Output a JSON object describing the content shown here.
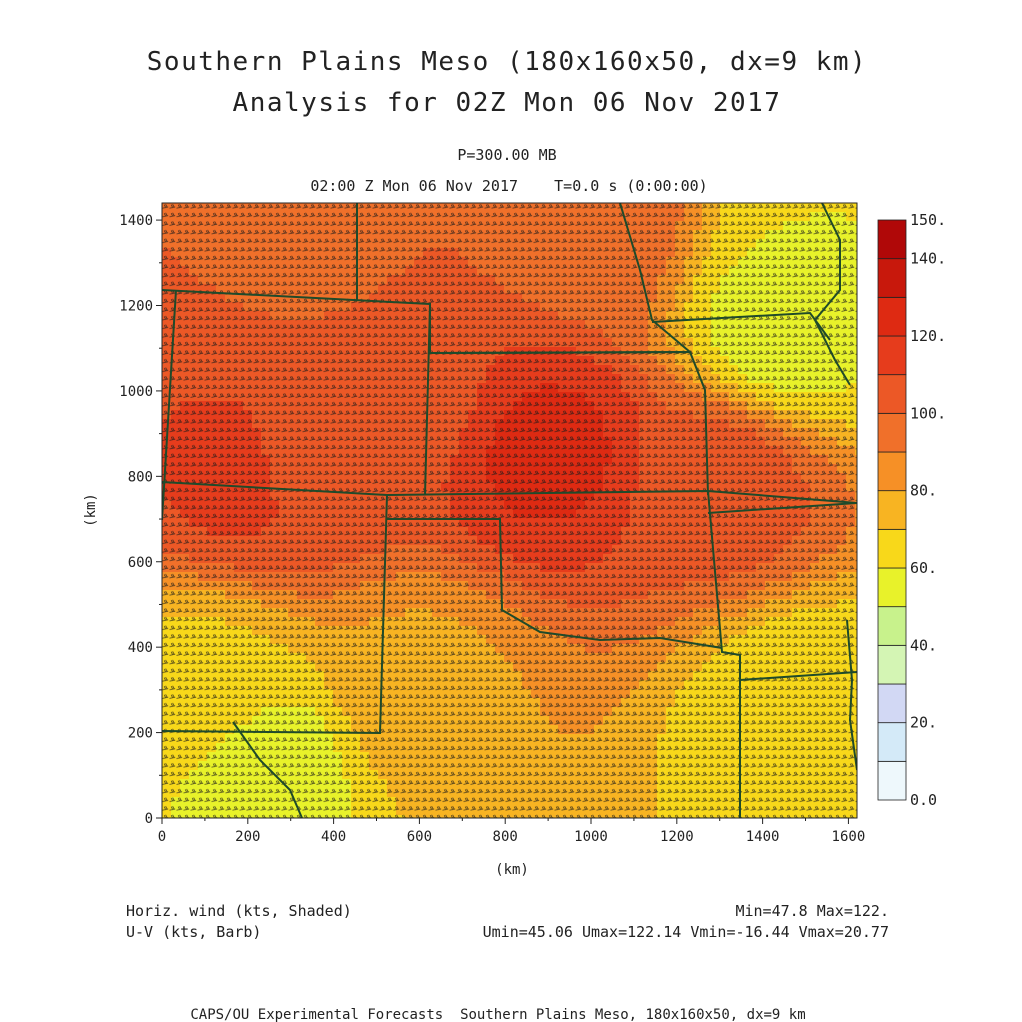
{
  "title_line1": "Southern Plains Meso (180x160x50, dx=9 km)",
  "title_line2": "Analysis for 02Z Mon 06 Nov 2017",
  "level_label": "P=300.00 MB",
  "time_label": "02:00 Z Mon 06 Nov 2017    T=0.0 s (0:00:00)",
  "stats_left_line1": "Horiz. wind (kts, Shaded)",
  "stats_left_line2": "U-V (kts, Barb)",
  "stats_right_line1": "Min=47.8 Max=122.",
  "stats_right_line2": "Umin=45.06 Umax=122.14 Vmin=-16.44 Vmax=20.77",
  "footer": "CAPS/OU Experimental Forecasts  Southern Plains Meso, 180x160x50, dx=9 km",
  "chart_data": {
    "type": "heatmap",
    "xlabel": "(km)",
    "ylabel": "(km)",
    "xlim": [
      0,
      1620
    ],
    "ylim": [
      0,
      1440
    ],
    "xticks": [
      0,
      200,
      400,
      600,
      800,
      1000,
      1200,
      1400,
      1600
    ],
    "yticks": [
      0,
      200,
      400,
      600,
      800,
      1000,
      1200,
      1400
    ],
    "xtick_labels": [
      "0",
      "200",
      "400",
      "600",
      "800",
      "1000",
      "1200",
      "1400",
      "1600"
    ],
    "ytick_labels": [
      "0",
      "200",
      "400",
      "600",
      "800",
      "1000",
      "1200",
      "1400"
    ],
    "colorbar": {
      "levels": [
        0,
        10,
        20,
        30,
        40,
        50,
        60,
        70,
        80,
        90,
        100,
        110,
        120,
        130,
        140,
        150
      ],
      "labels": [
        "0.0",
        "20.",
        "40.",
        "60.",
        "80.",
        "100.",
        "120.",
        "140.",
        "150."
      ],
      "label_values": [
        0,
        20,
        40,
        60,
        80,
        100,
        120,
        140,
        150
      ],
      "colors": [
        "#eef8fc",
        "#d4eaf8",
        "#d2d8f4",
        "#d4f5b4",
        "#c8f28c",
        "#e8f22a",
        "#f8d81a",
        "#f8b422",
        "#f69026",
        "#f0702a",
        "#ec5826",
        "#e63c1c",
        "#de2a12",
        "#c8180c",
        "#b00808"
      ]
    },
    "wind_speed_centers": [
      {
        "x": 900,
        "y": 860,
        "speed": 122
      },
      {
        "x": 180,
        "y": 800,
        "speed": 112
      },
      {
        "x": 320,
        "y": 830,
        "speed": 108
      },
      {
        "x": 550,
        "y": 1000,
        "speed": 104
      },
      {
        "x": 1300,
        "y": 780,
        "speed": 105
      },
      {
        "x": 600,
        "y": 300,
        "speed": 78
      },
      {
        "x": 1450,
        "y": 1150,
        "speed": 55
      },
      {
        "x": 1500,
        "y": 250,
        "speed": 62
      },
      {
        "x": 250,
        "y": 120,
        "speed": 55
      },
      {
        "x": 100,
        "y": 320,
        "speed": 68
      },
      {
        "x": 350,
        "y": 1350,
        "speed": 98
      },
      {
        "x": 1000,
        "y": 1380,
        "speed": 97
      },
      {
        "x": 1560,
        "y": 1320,
        "speed": 60
      }
    ],
    "stats": {
      "min": 47.8,
      "max": 122,
      "umin": 45.06,
      "umax": 122.14,
      "vmin": -16.44,
      "vmax": 20.77
    }
  }
}
